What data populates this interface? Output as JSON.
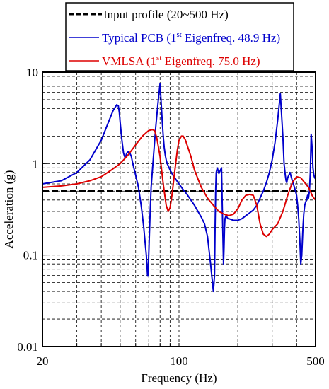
{
  "chart_data": {
    "type": "line",
    "xlabel": "Frequency (Hz)",
    "ylabel": "Acceleration (g)",
    "x_scale": "log",
    "y_scale": "log",
    "xlim": [
      20,
      500
    ],
    "ylim": [
      0.01,
      10
    ],
    "x_ticks": [
      20,
      100,
      500
    ],
    "x_tick_labels": [
      "20",
      "100",
      "500"
    ],
    "y_ticks": [
      0.01,
      0.1,
      1,
      10
    ],
    "y_tick_labels": [
      "0.01",
      "0.1",
      "1",
      "10"
    ],
    "grid": "dashed major and minor",
    "legend_position": "top, above plot",
    "series": [
      {
        "name": "Input profile (20~500 Hz)",
        "legend": {
          "main": "Input profile (20~500 Hz)",
          "pre": "",
          "sup": "",
          "post": ""
        },
        "color": "#000000",
        "style": "dashed",
        "x": [
          20,
          500
        ],
        "y": [
          0.5,
          0.5
        ]
      },
      {
        "name": "Typical PCB (1st Eigenfreq. 48.9 Hz)",
        "legend": {
          "main": "",
          "pre": "Typical PCB (1",
          "sup": "st",
          "post": " Eigenfreq. 48.9 Hz)"
        },
        "color": "#0000cc",
        "style": "solid",
        "x": [
          20,
          25,
          30,
          35,
          40,
          44,
          46,
          48,
          48.9,
          49.5,
          50,
          51,
          52,
          53,
          54,
          55,
          56,
          57,
          58,
          60,
          62,
          64,
          66,
          67,
          68,
          68.5,
          69,
          69.5,
          70,
          71,
          72,
          74,
          76,
          78,
          80,
          82,
          83,
          84,
          85,
          86,
          87,
          88,
          90,
          93,
          96,
          100,
          105,
          110,
          115,
          120,
          125,
          130,
          135,
          140,
          145,
          150,
          152,
          153,
          154,
          155,
          157,
          160,
          163,
          165,
          167,
          169,
          170,
          171,
          172,
          174,
          176,
          178,
          180,
          190,
          200,
          210,
          220,
          230,
          240,
          250,
          260,
          270,
          280,
          290,
          300,
          310,
          320,
          330,
          340,
          345,
          350,
          353,
          356,
          360,
          365,
          370,
          380,
          390,
          400,
          405,
          410,
          415,
          420,
          425,
          430,
          435,
          440,
          445,
          450,
          455,
          460,
          465,
          470,
          475,
          480,
          485,
          490,
          495,
          500
        ],
        "y": [
          0.6,
          0.65,
          0.8,
          1.1,
          1.8,
          3.0,
          3.8,
          4.4,
          4.3,
          3.6,
          2.8,
          1.8,
          1.3,
          1.15,
          1.3,
          1.35,
          1.3,
          1.2,
          1.0,
          0.75,
          0.55,
          0.35,
          0.2,
          0.14,
          0.1,
          0.08,
          0.06,
          0.06,
          0.1,
          0.25,
          0.55,
          1.2,
          2.5,
          4.5,
          7.5,
          3.0,
          2.0,
          1.5,
          1.25,
          1.1,
          1.0,
          0.95,
          0.85,
          0.75,
          0.68,
          0.6,
          0.52,
          0.46,
          0.4,
          0.35,
          0.3,
          0.26,
          0.22,
          0.16,
          0.08,
          0.04,
          0.06,
          0.2,
          0.5,
          0.8,
          0.9,
          0.78,
          0.85,
          0.9,
          0.25,
          0.08,
          0.12,
          0.2,
          0.25,
          0.27,
          0.26,
          0.25,
          0.25,
          0.24,
          0.24,
          0.25,
          0.27,
          0.29,
          0.31,
          0.35,
          0.42,
          0.5,
          0.62,
          0.8,
          1.1,
          1.7,
          3.0,
          5.8,
          2.0,
          1.0,
          0.75,
          0.65,
          0.62,
          0.7,
          0.75,
          0.8,
          0.65,
          0.55,
          0.45,
          0.35,
          0.25,
          0.15,
          0.08,
          0.1,
          0.18,
          0.28,
          0.35,
          0.38,
          0.4,
          0.45,
          0.42,
          0.5,
          0.8,
          2.1,
          1.5,
          0.9,
          0.75,
          0.7,
          0.68
        ]
      },
      {
        "name": "VMLSA (1st Eigenfreq. 75.0 Hz)",
        "legend": {
          "main": "",
          "pre": "VMLSA (1",
          "sup": "st",
          "post": " Eigenfreq. 75.0 Hz)"
        },
        "color": "#dd0000",
        "style": "solid",
        "x": [
          20,
          25,
          30,
          35,
          40,
          45,
          50,
          55,
          60,
          65,
          70,
          73,
          75,
          77,
          80,
          83,
          86,
          88,
          90,
          92,
          95,
          98,
          100,
          103,
          105,
          108,
          110,
          115,
          120,
          130,
          140,
          150,
          160,
          170,
          180,
          190,
          200,
          210,
          220,
          230,
          240,
          250,
          260,
          270,
          280,
          290,
          300,
          320,
          340,
          360,
          380,
          400,
          420,
          440,
          460,
          470,
          480,
          490,
          500
        ],
        "y": [
          0.55,
          0.57,
          0.6,
          0.65,
          0.72,
          0.85,
          1.0,
          1.25,
          1.6,
          2.0,
          2.3,
          2.35,
          2.3,
          1.9,
          1.2,
          0.6,
          0.35,
          0.3,
          0.33,
          0.45,
          0.8,
          1.4,
          1.8,
          2.0,
          2.0,
          1.8,
          1.6,
          1.2,
          0.85,
          0.55,
          0.42,
          0.35,
          0.3,
          0.28,
          0.27,
          0.28,
          0.32,
          0.4,
          0.45,
          0.46,
          0.45,
          0.35,
          0.22,
          0.17,
          0.16,
          0.17,
          0.19,
          0.22,
          0.3,
          0.45,
          0.62,
          0.72,
          0.7,
          0.62,
          0.55,
          0.5,
          0.45,
          0.42,
          0.4
        ]
      }
    ]
  }
}
